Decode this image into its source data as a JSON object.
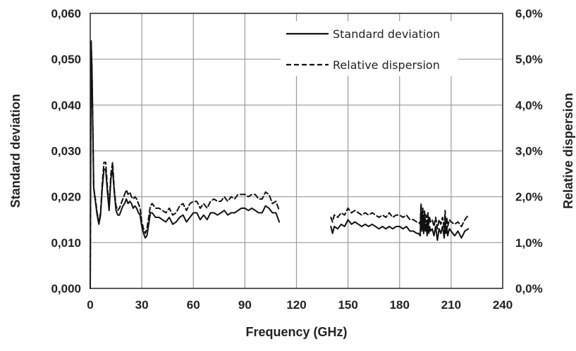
{
  "chart_data": {
    "type": "line",
    "xlabel": "Frequency (GHz)",
    "ylabel": "Standard deviation",
    "y2label": "Relative dispersion",
    "xlim": [
      0,
      240
    ],
    "ylim": [
      0,
      0.06
    ],
    "y2lim": [
      0,
      6
    ],
    "xticks": [
      "0",
      "30",
      "60",
      "90",
      "120",
      "150",
      "180",
      "210",
      "240"
    ],
    "yticks": [
      "0,000",
      "0,010",
      "0,020",
      "0,030",
      "0,040",
      "0,050",
      "0,060"
    ],
    "y2ticks": [
      "0,0%",
      "1,0%",
      "2,0%",
      "3,0%",
      "4,0%",
      "5,0%",
      "6,0%"
    ],
    "grid": true,
    "legend_position": "top-right",
    "series": [
      {
        "name": "Standard deviation",
        "style": "solid",
        "axis": "left",
        "segments": [
          {
            "x": [
              0,
              0.5,
              1,
              1.5,
              2,
              3,
              4,
              5,
              6,
              7,
              8,
              9,
              10,
              11,
              12,
              13,
              14,
              15,
              16,
              17,
              18,
              19,
              20,
              21,
              22,
              23,
              24,
              25,
              26,
              27,
              28,
              29,
              30,
              31,
              32,
              33,
              34,
              35,
              36,
              38,
              40,
              42,
              44,
              46,
              48,
              50,
              52,
              54,
              56,
              58,
              60,
              62,
              64,
              66,
              68,
              70,
              72,
              74,
              76,
              78,
              80,
              82,
              84,
              86,
              88,
              90,
              92,
              94,
              96,
              98,
              100,
              102,
              104,
              106,
              108,
              110
            ],
            "values": [
              0.0,
              0.054,
              0.048,
              0.035,
              0.022,
              0.019,
              0.016,
              0.014,
              0.016,
              0.022,
              0.026,
              0.026,
              0.021,
              0.017,
              0.024,
              0.026,
              0.021,
              0.017,
              0.016,
              0.016,
              0.017,
              0.018,
              0.0185,
              0.0195,
              0.0185,
              0.019,
              0.0185,
              0.0175,
              0.018,
              0.0175,
              0.0165,
              0.016,
              0.0135,
              0.012,
              0.011,
              0.0115,
              0.014,
              0.0165,
              0.0165,
              0.0155,
              0.0155,
              0.015,
              0.0145,
              0.0155,
              0.014,
              0.0145,
              0.0155,
              0.016,
              0.0145,
              0.0155,
              0.0165,
              0.0165,
              0.015,
              0.016,
              0.015,
              0.0165,
              0.0165,
              0.016,
              0.0165,
              0.017,
              0.016,
              0.0165,
              0.0165,
              0.017,
              0.0175,
              0.0175,
              0.017,
              0.0175,
              0.017,
              0.0165,
              0.0165,
              0.018,
              0.0175,
              0.0165,
              0.0165,
              0.0145
            ]
          },
          {
            "x": [
              140,
              141,
              142,
              144,
              146,
              148,
              150,
              152,
              154,
              156,
              158,
              160,
              162,
              164,
              166,
              168,
              170,
              172,
              174,
              176,
              178,
              180,
              182,
              184,
              186,
              188,
              190,
              191,
              192,
              192.5,
              193,
              193.5,
              194,
              194.5,
              195,
              195.5,
              196,
              196.5,
              197,
              197.5,
              198,
              199,
              200,
              201,
              202,
              203,
              204,
              205,
              206,
              206.5,
              207,
              207.5,
              208,
              209,
              210,
              212,
              214,
              216,
              218,
              220
            ],
            "values": [
              0.0135,
              0.012,
              0.0135,
              0.013,
              0.014,
              0.0135,
              0.015,
              0.014,
              0.0145,
              0.014,
              0.0135,
              0.014,
              0.0135,
              0.014,
              0.0135,
              0.013,
              0.0135,
              0.013,
              0.0135,
              0.013,
              0.0135,
              0.0135,
              0.013,
              0.0135,
              0.0125,
              0.0125,
              0.012,
              0.012,
              0.0115,
              0.018,
              0.0125,
              0.016,
              0.012,
              0.0155,
              0.0125,
              0.014,
              0.0115,
              0.015,
              0.012,
              0.0135,
              0.0125,
              0.013,
              0.0115,
              0.0135,
              0.0105,
              0.013,
              0.012,
              0.0135,
              0.011,
              0.015,
              0.012,
              0.0135,
              0.0115,
              0.013,
              0.0125,
              0.0115,
              0.0125,
              0.011,
              0.0125,
              0.013
            ]
          }
        ]
      },
      {
        "name": "Relative dispersion",
        "style": "dashed",
        "axis": "right",
        "segments": [
          {
            "x": [
              0,
              0.5,
              1,
              1.5,
              2,
              3,
              4,
              5,
              6,
              7,
              8,
              9,
              10,
              11,
              12,
              13,
              14,
              15,
              16,
              17,
              18,
              19,
              20,
              21,
              22,
              23,
              24,
              25,
              26,
              27,
              28,
              29,
              30,
              31,
              32,
              33,
              34,
              35,
              36,
              38,
              40,
              42,
              44,
              46,
              48,
              50,
              52,
              54,
              56,
              58,
              60,
              62,
              64,
              66,
              68,
              70,
              72,
              74,
              76,
              78,
              80,
              82,
              84,
              86,
              88,
              90,
              92,
              94,
              96,
              98,
              100,
              102,
              104,
              106,
              108,
              110
            ],
            "values": [
              0.0,
              5.4,
              4.8,
              3.5,
              2.2,
              1.95,
              1.65,
              1.45,
              1.65,
              2.3,
              2.75,
              2.75,
              2.2,
              1.8,
              2.5,
              2.75,
              2.15,
              1.8,
              1.7,
              1.75,
              1.85,
              1.95,
              2.05,
              2.15,
              2.05,
              2.1,
              2.0,
              1.95,
              2.0,
              1.95,
              1.85,
              1.75,
              1.45,
              1.3,
              1.2,
              1.3,
              1.55,
              1.8,
              1.85,
              1.75,
              1.75,
              1.7,
              1.65,
              1.75,
              1.6,
              1.65,
              1.8,
              1.85,
              1.7,
              1.85,
              1.9,
              1.9,
              1.75,
              1.85,
              1.75,
              1.9,
              1.95,
              1.9,
              1.9,
              2.0,
              1.9,
              2.0,
              1.95,
              2.05,
              2.05,
              2.05,
              2.0,
              2.05,
              2.05,
              1.95,
              1.95,
              2.1,
              2.05,
              1.85,
              1.9,
              1.7
            ]
          },
          {
            "x": [
              140,
              141,
              142,
              144,
              146,
              148,
              150,
              152,
              154,
              156,
              158,
              160,
              162,
              164,
              166,
              168,
              170,
              172,
              174,
              176,
              178,
              180,
              182,
              184,
              186,
              188,
              190,
              191,
              192,
              192.5,
              193,
              193.5,
              194,
              194.5,
              195,
              195.5,
              196,
              196.5,
              197,
              197.5,
              198,
              199,
              200,
              201,
              202,
              203,
              204,
              205,
              206,
              206.5,
              207,
              207.5,
              208,
              209,
              210,
              212,
              214,
              216,
              218,
              220
            ],
            "values": [
              1.55,
              1.45,
              1.6,
              1.55,
              1.65,
              1.6,
              1.75,
              1.65,
              1.7,
              1.65,
              1.6,
              1.65,
              1.6,
              1.65,
              1.6,
              1.55,
              1.6,
              1.55,
              1.65,
              1.55,
              1.6,
              1.6,
              1.55,
              1.6,
              1.5,
              1.5,
              1.45,
              1.45,
              1.4,
              1.85,
              1.45,
              1.75,
              1.4,
              1.7,
              1.45,
              1.6,
              1.35,
              1.65,
              1.4,
              1.55,
              1.45,
              1.5,
              1.35,
              1.55,
              1.3,
              1.5,
              1.4,
              1.55,
              1.3,
              1.7,
              1.4,
              1.55,
              1.35,
              1.5,
              1.45,
              1.4,
              1.45,
              1.35,
              1.5,
              1.6
            ]
          }
        ]
      }
    ]
  }
}
